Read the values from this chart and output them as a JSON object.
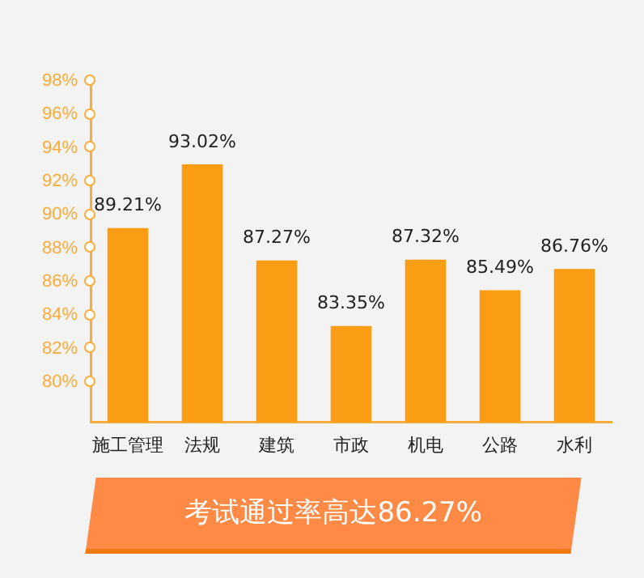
{
  "chart_data": {
    "type": "bar",
    "categories": [
      "施工管理",
      "法规",
      "建筑",
      "市政",
      "机电",
      "公路",
      "水利"
    ],
    "values": [
      89.21,
      93.02,
      87.27,
      83.35,
      87.32,
      85.49,
      86.76
    ],
    "color": "#fa9d14",
    "ylim": [
      77.6,
      98
    ],
    "yticks": [
      {
        "value": 80,
        "label": "80%"
      },
      {
        "value": 82,
        "label": "82%"
      },
      {
        "value": 84,
        "label": "84%"
      },
      {
        "value": 86,
        "label": "86%"
      },
      {
        "value": 88,
        "label": "88%"
      },
      {
        "value": 90,
        "label": "90%"
      },
      {
        "value": 92,
        "label": "92%"
      },
      {
        "value": 94,
        "label": "94%"
      },
      {
        "value": 96,
        "label": "96%"
      },
      {
        "value": 98,
        "label": "98%"
      }
    ],
    "value_labels": [
      "89.21%",
      "93.02%",
      "87.27%",
      "83.35%",
      "87.32%",
      "85.49%",
      "86.76%"
    ],
    "grid": false,
    "legend": false,
    "annotations": [
      "考试通过率高达86.27%"
    ]
  }
}
